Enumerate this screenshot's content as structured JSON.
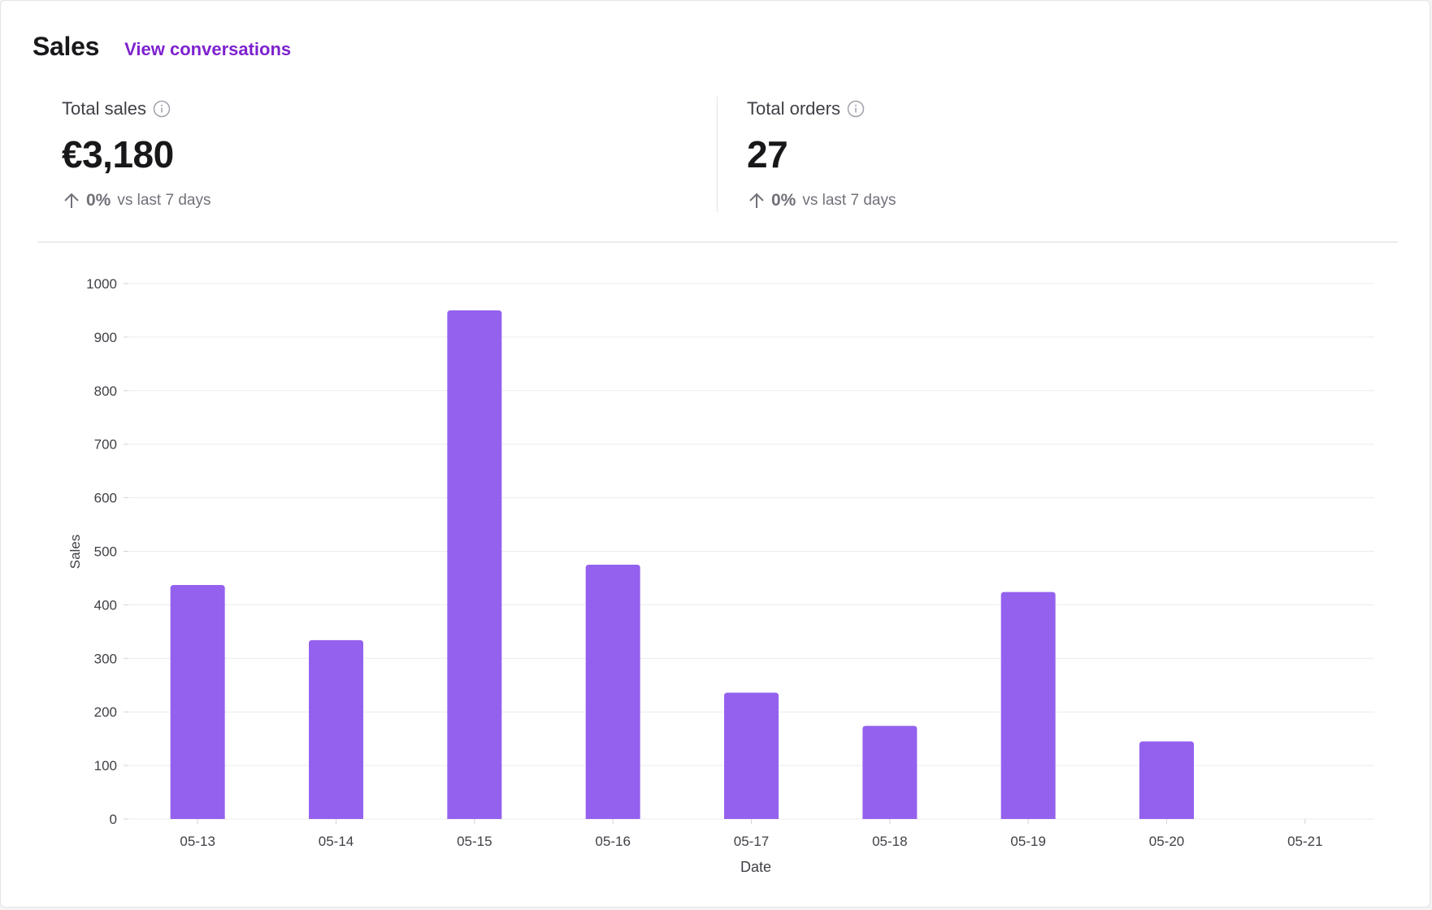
{
  "header": {
    "title": "Sales",
    "link_label": "View conversations"
  },
  "metrics": [
    {
      "label": "Total sales",
      "value": "€3,180",
      "change": "0%",
      "change_suffix": "vs last 7 days"
    },
    {
      "label": "Total orders",
      "value": "27",
      "change": "0%",
      "change_suffix": "vs last 7 days"
    }
  ],
  "icons": {
    "info": "info-circle-icon",
    "change": "arrow-up-icon"
  },
  "colors": {
    "bar": "#9461ee",
    "link": "#7e22ce",
    "grid": "#ececee"
  },
  "chart_data": {
    "type": "bar",
    "categories": [
      "05-13",
      "05-14",
      "05-15",
      "05-16",
      "05-17",
      "05-18",
      "05-19",
      "05-20",
      "05-21"
    ],
    "values": [
      437,
      334,
      950,
      475,
      236,
      174,
      424,
      145,
      0
    ],
    "xlabel": "Date",
    "ylabel": "Sales",
    "ylim": [
      0,
      1000
    ],
    "yticks": [
      0,
      100,
      200,
      300,
      400,
      500,
      600,
      700,
      800,
      900,
      1000
    ],
    "grid": true
  }
}
